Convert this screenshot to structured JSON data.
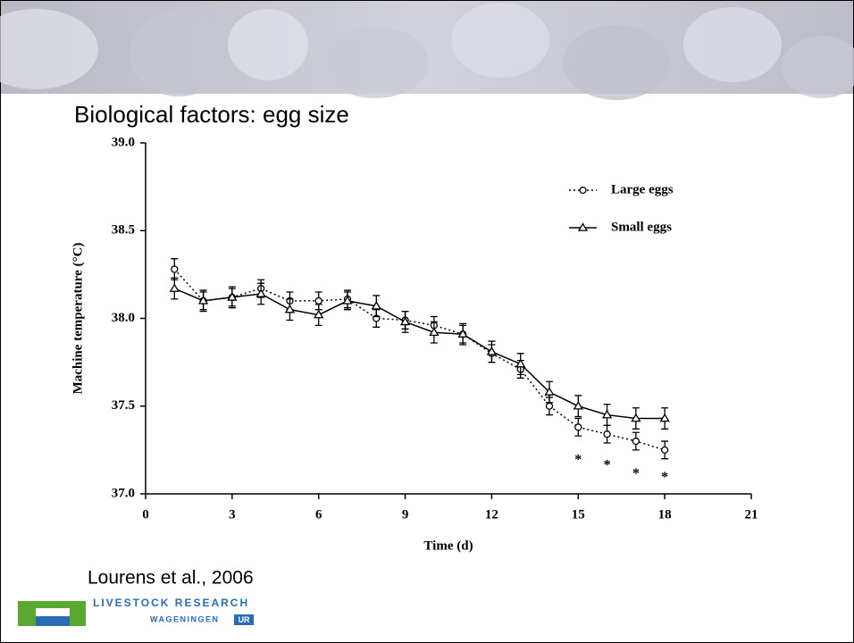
{
  "slide_title": "Biological factors: egg size",
  "citation": "Lourens et al., 2006",
  "logo": {
    "line1": "LIVESTOCK RESEARCH",
    "line2": "WAGENINGEN",
    "badge": "UR"
  },
  "chart_data": {
    "type": "line",
    "xlabel": "Time (d)",
    "ylabel": "Machine temperature (°C)",
    "x": [
      1,
      2,
      3,
      4,
      5,
      6,
      7,
      8,
      9,
      10,
      11,
      12,
      13,
      14,
      15,
      16,
      17,
      18
    ],
    "series": [
      {
        "name": "Large eggs",
        "color": "#000000",
        "dash": "dotted",
        "marker": "circle",
        "values": [
          38.28,
          38.1,
          38.12,
          38.17,
          38.1,
          38.1,
          38.11,
          38.0,
          37.99,
          37.96,
          37.91,
          37.8,
          37.71,
          37.5,
          37.38,
          37.34,
          37.3,
          37.25
        ],
        "errors": [
          0.06,
          0.05,
          0.05,
          0.05,
          0.05,
          0.05,
          0.05,
          0.05,
          0.05,
          0.05,
          0.05,
          0.05,
          0.05,
          0.05,
          0.05,
          0.05,
          0.05,
          0.05
        ]
      },
      {
        "name": "Small eggs",
        "color": "#000000",
        "dash": "solid",
        "marker": "triangle",
        "values": [
          38.17,
          38.1,
          38.12,
          38.14,
          38.05,
          38.02,
          38.1,
          38.07,
          37.98,
          37.92,
          37.91,
          37.81,
          37.74,
          37.58,
          37.5,
          37.45,
          37.43,
          37.43
        ],
        "errors": [
          0.06,
          0.06,
          0.06,
          0.06,
          0.06,
          0.06,
          0.05,
          0.06,
          0.06,
          0.06,
          0.06,
          0.06,
          0.06,
          0.06,
          0.06,
          0.06,
          0.06,
          0.06
        ]
      }
    ],
    "annotations": [
      {
        "x": 15,
        "y": 37.21,
        "text": "*"
      },
      {
        "x": 16,
        "y": 37.18,
        "text": "*"
      },
      {
        "x": 17,
        "y": 37.13,
        "text": "*"
      },
      {
        "x": 18,
        "y": 37.11,
        "text": "*"
      }
    ],
    "xlim": [
      0,
      21
    ],
    "xticks": [
      0,
      3,
      6,
      9,
      12,
      15,
      18,
      21
    ],
    "ylim": [
      37.0,
      39.0
    ],
    "yticks": [
      {
        "value": 37.0,
        "label": "37.0"
      },
      37.5,
      {
        "value": 38.0,
        "label": "38.0"
      },
      38.5,
      {
        "value": 39.0,
        "label": "39.0"
      }
    ],
    "legend": "upper right",
    "grid": false
  }
}
